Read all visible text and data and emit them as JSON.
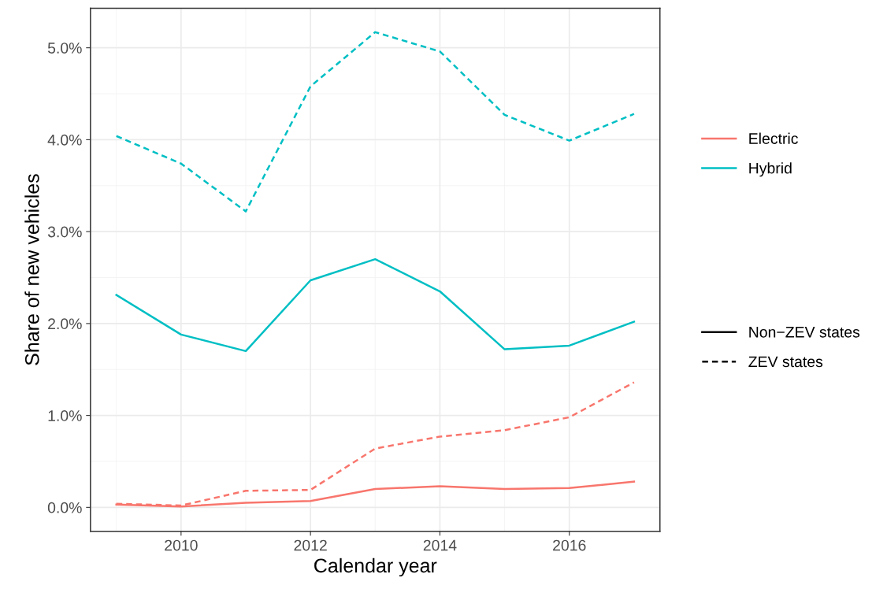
{
  "chart_data": {
    "type": "line",
    "xlabel": "Calendar year",
    "ylabel": "Share of new vehicles",
    "x": [
      2009,
      2010,
      2011,
      2012,
      2013,
      2014,
      2015,
      2016,
      2017
    ],
    "series": [
      {
        "name": "Electric",
        "color": "#f8766d",
        "line_style": "solid",
        "values": [
          0.03,
          0.01,
          0.05,
          0.07,
          0.2,
          0.23,
          0.2,
          0.21,
          0.28
        ]
      },
      {
        "color": "#f8766d",
        "line_style": "dashed",
        "values": [
          0.04,
          0.02,
          0.18,
          0.19,
          0.64,
          0.77,
          0.84,
          0.98,
          1.36
        ]
      },
      {
        "name": "Hybrid",
        "color": "#00bfc4",
        "line_style": "solid",
        "values": [
          2.31,
          1.88,
          1.7,
          2.47,
          2.7,
          2.35,
          1.72,
          1.76,
          2.02
        ]
      },
      {
        "color": "#00bfc4",
        "line_style": "dashed",
        "values": [
          4.04,
          3.74,
          3.22,
          4.58,
          5.17,
          4.96,
          4.27,
          3.99,
          4.28
        ]
      }
    ],
    "annotations": [
      "Non−ZEV states",
      "ZEV states"
    ],
    "xlim": [
      2008.6,
      2017.4
    ],
    "xticks": [
      2010,
      2012,
      2014,
      2016
    ],
    "ylim": [
      -0.26,
      5.43
    ],
    "yticks": [
      {
        "value": 0,
        "label": "0.0%"
      },
      {
        "value": 1,
        "label": "1.0%"
      },
      {
        "value": 2,
        "label": "2.0%"
      },
      {
        "value": 3,
        "label": "3.0%"
      },
      {
        "value": 4,
        "label": "4.0%"
      },
      {
        "value": 5,
        "label": "5.0%"
      }
    ],
    "grid": true,
    "legend": "right",
    "marker": "none"
  }
}
